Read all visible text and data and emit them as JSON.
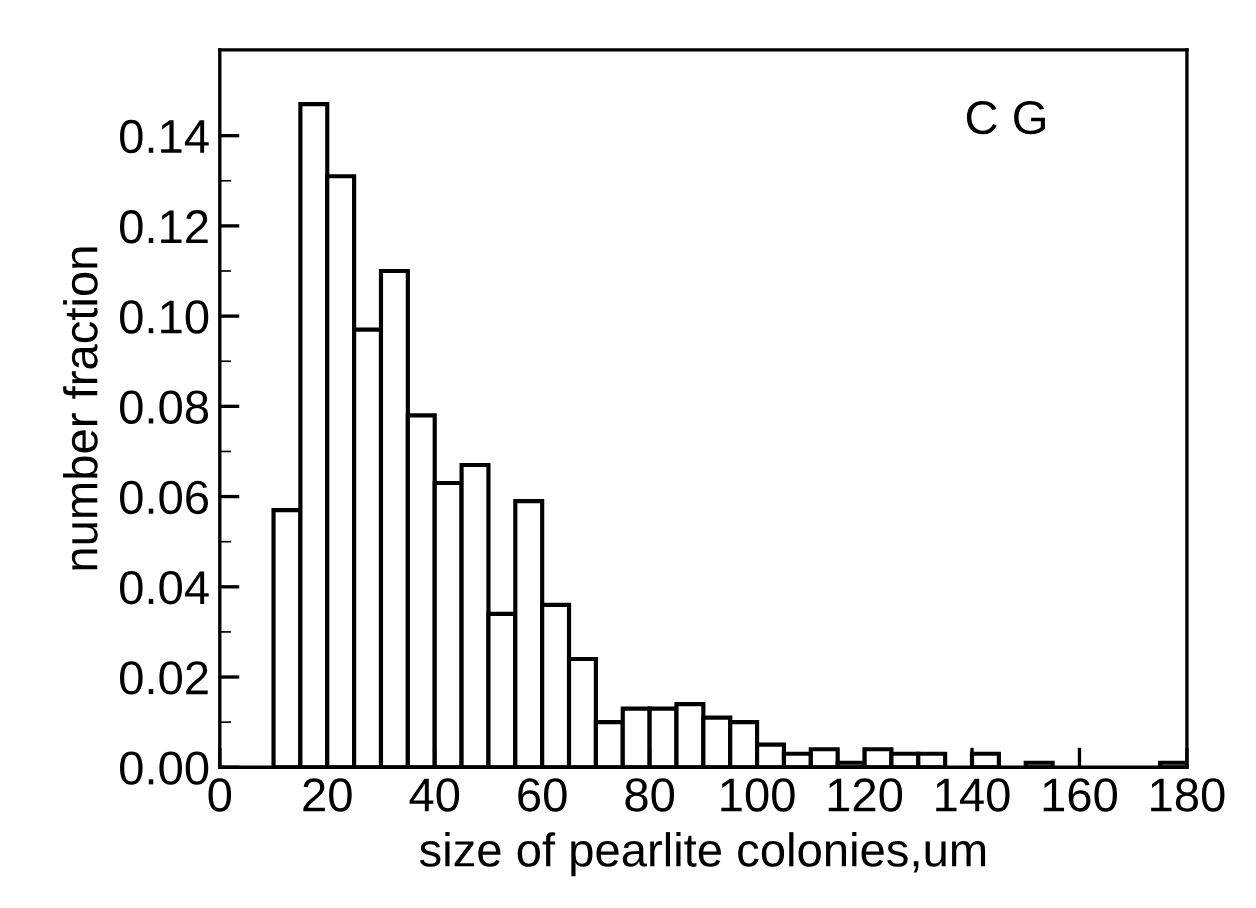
{
  "chart_data": {
    "type": "histogram",
    "xlabel": "size of pearlite colonies,um",
    "ylabel": "number fraction",
    "annotations": [
      "C G"
    ],
    "bins": [
      10,
      15,
      20,
      25,
      30,
      35,
      40,
      45,
      50,
      55,
      60,
      65,
      70,
      75,
      80,
      85,
      90,
      95,
      100,
      105,
      110,
      115,
      120,
      125,
      130,
      135,
      140,
      145,
      150,
      155,
      160,
      165,
      170,
      175,
      180
    ],
    "values": [
      0.057,
      0.147,
      0.131,
      0.097,
      0.11,
      0.078,
      0.063,
      0.067,
      0.034,
      0.059,
      0.036,
      0.024,
      0.01,
      0.013,
      0.013,
      0.014,
      0.011,
      0.01,
      0.005,
      0.003,
      0.004,
      0.001,
      0.004,
      0.003,
      0.003,
      0,
      0.003,
      0,
      0.001,
      0,
      0,
      0,
      0,
      0.001
    ],
    "color": "#ffffff",
    "xlim": [
      0,
      180
    ],
    "xticks": [
      0,
      20,
      40,
      60,
      80,
      100,
      120,
      140,
      160,
      180
    ],
    "ylim": [
      0,
      0.159
    ],
    "yticks": [
      {
        "value": 0,
        "label": "0.00"
      },
      {
        "value": 0.02,
        "label": "0.02"
      },
      {
        "value": 0.04,
        "label": "0.04"
      },
      {
        "value": 0.06,
        "label": "0.06"
      },
      {
        "value": 0.08,
        "label": "0.08"
      },
      {
        "value": 0.1,
        "label": "0.10"
      },
      {
        "value": 0.12,
        "label": "0.12"
      },
      {
        "value": 0.14,
        "label": "0.14"
      }
    ],
    "grid": false
  }
}
